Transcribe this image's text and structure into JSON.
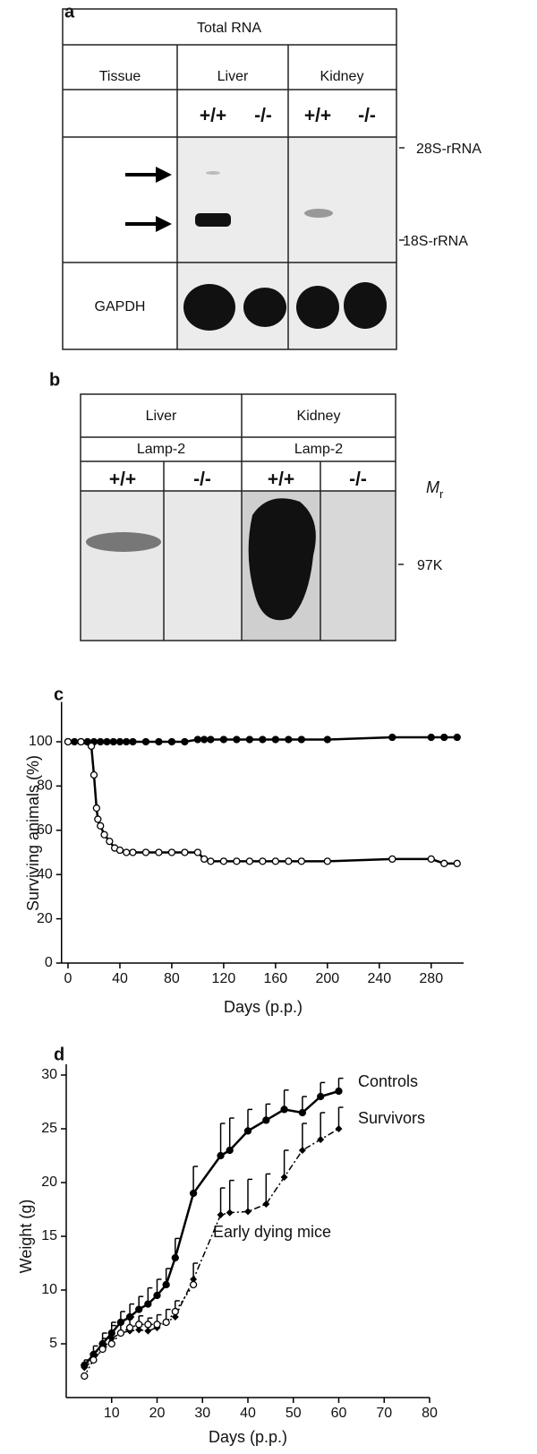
{
  "panel_a": {
    "label": "a",
    "title": "Total RNA",
    "tissue_header": "Tissue",
    "tissues": [
      "Liver",
      "Kidney"
    ],
    "genotypes": [
      "+/+",
      "-/-",
      "+/+",
      "-/-"
    ],
    "markers": [
      "28S-rRNA",
      "18S-rRNA"
    ],
    "probe": "GAPDH"
  },
  "panel_b": {
    "label": "b",
    "tissues": [
      "Liver",
      "Kidney"
    ],
    "antigens": [
      "Lamp-2",
      "Lamp-2"
    ],
    "genotypes": [
      "+/+",
      "-/-",
      "+/+",
      "-/-"
    ],
    "mr_symbol": "M",
    "mr_subscript": "r",
    "size_marker": "97K"
  },
  "chart_data": [
    {
      "type": "line",
      "panel_label": "c",
      "xlabel": "Days (p.p.)",
      "ylabel": "Surviving animals (%)",
      "xlim": [
        -5,
        305
      ],
      "ylim": [
        0,
        118
      ],
      "xticks": [
        0,
        40,
        80,
        120,
        160,
        200,
        240,
        280
      ],
      "yticks": [
        0,
        20,
        40,
        60,
        80,
        100
      ],
      "series": [
        {
          "marker": "filled",
          "line_style": "solid",
          "color": "#000000",
          "x": [
            0,
            5,
            10,
            15,
            20,
            25,
            30,
            35,
            40,
            45,
            50,
            60,
            70,
            80,
            90,
            100,
            105,
            110,
            120,
            130,
            140,
            150,
            160,
            170,
            180,
            200,
            250,
            280,
            290,
            300
          ],
          "values": [
            100,
            100,
            100,
            100,
            100,
            100,
            100,
            100,
            100,
            100,
            100,
            100,
            100,
            100,
            100,
            101,
            101,
            101,
            101,
            101,
            101,
            101,
            101,
            101,
            101,
            101,
            102,
            102,
            102,
            102
          ]
        },
        {
          "marker": "open",
          "line_style": "solid",
          "color": "#000000",
          "x": [
            0,
            10,
            18,
            20,
            22,
            23,
            25,
            28,
            32,
            36,
            40,
            45,
            50,
            60,
            70,
            80,
            90,
            100,
            105,
            110,
            120,
            130,
            140,
            150,
            160,
            170,
            180,
            200,
            250,
            280,
            290,
            300
          ],
          "values": [
            100,
            100,
            98,
            85,
            70,
            65,
            62,
            58,
            55,
            52,
            51,
            50,
            50,
            50,
            50,
            50,
            50,
            50,
            47,
            46,
            46,
            46,
            46,
            46,
            46,
            46,
            46,
            46,
            47,
            47,
            45,
            45
          ]
        }
      ]
    },
    {
      "type": "line",
      "panel_label": "d",
      "xlabel": "Days (p.p.)",
      "ylabel": "Weight (g)",
      "xlim": [
        0,
        80
      ],
      "ylim": [
        0,
        31
      ],
      "xticks": [
        10,
        20,
        30,
        40,
        50,
        60,
        70,
        80
      ],
      "yticks": [
        5,
        10,
        15,
        20,
        25,
        30
      ],
      "series": [
        {
          "name": "Controls",
          "marker": "filled",
          "line_style": "solid",
          "color": "#000000",
          "x": [
            4,
            6,
            8,
            10,
            12,
            14,
            16,
            18,
            20,
            22,
            24,
            28,
            34,
            36,
            40,
            44,
            48,
            52,
            56,
            60
          ],
          "values": [
            3,
            4,
            5,
            6,
            7,
            7.5,
            8.2,
            8.7,
            9.5,
            10.5,
            13,
            19,
            22.5,
            23,
            24.8,
            25.8,
            26.8,
            26.5,
            28,
            28.5
          ],
          "errors": [
            0.5,
            0.8,
            1,
            1,
            1,
            1.2,
            1.2,
            1.5,
            1.5,
            1.5,
            1.8,
            2.5,
            3,
            3,
            2,
            1.5,
            1.8,
            1.5,
            1.3,
            1.2
          ]
        },
        {
          "name": "Survivors",
          "marker": "diamond",
          "line_style": "dash-dot",
          "color": "#000000",
          "x": [
            4,
            6,
            8,
            10,
            12,
            14,
            16,
            18,
            20,
            22,
            24,
            28,
            34,
            36,
            40,
            44,
            48,
            52,
            56,
            60
          ],
          "values": [
            2.8,
            3.5,
            4.5,
            5.5,
            6,
            6.2,
            6.3,
            6.2,
            6.5,
            7,
            7.5,
            11,
            17,
            17.2,
            17.3,
            18,
            20.5,
            23,
            24,
            25
          ],
          "errors": [
            0.5,
            0.8,
            1,
            1.2,
            1.2,
            1.3,
            1.3,
            1.2,
            1.2,
            1.2,
            1.5,
            1.5,
            2.5,
            3,
            3,
            2.8,
            2.5,
            2.5,
            2.5,
            2
          ]
        },
        {
          "name": "Early dying mice",
          "marker": "open",
          "line_style": "dotted",
          "color": "#000000",
          "x": [
            4,
            6,
            8,
            10,
            12,
            14,
            16,
            18,
            20,
            22,
            24,
            28
          ],
          "values": [
            2,
            3.5,
            4.5,
            5,
            6,
            6.5,
            6.8,
            6.8,
            6.8,
            7,
            8,
            10.5
          ]
        }
      ]
    }
  ]
}
